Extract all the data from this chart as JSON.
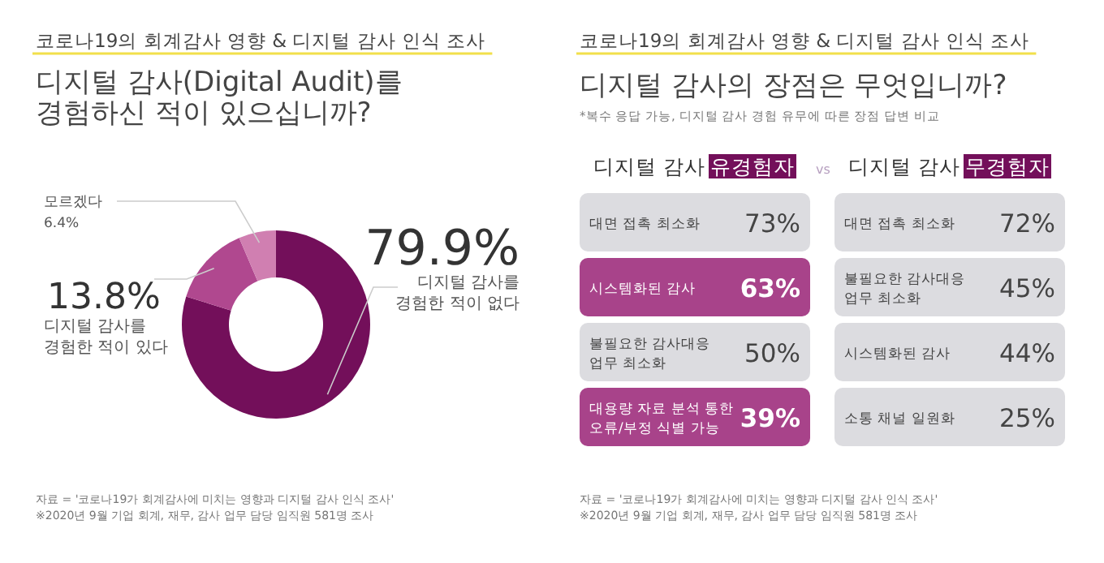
{
  "chart_data": [
    {
      "type": "donut",
      "subtitle": "코로나19의 회계감사 영향 & 디지털 감사 인식 조사",
      "title": "디지털 감사(Digital Audit)를\n경험하신 적이 있으십니까?",
      "categories": [
        "디지털 감사를\n경험한 적이 없다",
        "디지털 감사를\n경험한 적이 있다",
        "모르겠다"
      ],
      "values": [
        79.9,
        13.8,
        6.4
      ],
      "value_labels": [
        "79.9%",
        "13.8%",
        "6.4%"
      ],
      "colors": [
        "#730f5a",
        "#b0488f",
        "#d07fb1"
      ],
      "annotations": [
        "자료 = '코로나19가 회계감사에 미치는 영향과 디지털 감사 인식 조사'",
        "※2020년 9월 기업 회계, 재무, 감사 업무 담당 임직원 581명 조사"
      ]
    },
    {
      "type": "other",
      "subtitle": "코로나19의 회계감사 영향 & 디지털 감사 인식 조사",
      "title": "디지털 감사의 장점은 무엇입니까?",
      "annotations": [
        "*복수 응답 가능, 디지털 감사 경험 유무에 따른 장점 답변 비교",
        "vs",
        "자료 = '코로나19가 회계감사에 미치는 영향과 디지털 감사 인식 조사'",
        "※2020년 9월 기업 회계, 재무, 감사 업무 담당 임직원 581명 조사"
      ]
    },
    {
      "type": "other",
      "title": "디지털 감사 유경험자",
      "categories": [
        "대면 접촉 최소화",
        "시스템화된 감사",
        "불필요한 감사대응\n업무 최소화",
        "대용량 자료 분석 통한\n오류/부정 식별 가능"
      ],
      "value_labels": [
        "73%",
        "63%",
        "50%",
        "39%"
      ],
      "colors": [
        "#dcdce0",
        "#a8438a",
        "#dcdce0",
        "#a8438a"
      ]
    },
    {
      "type": "other",
      "title": "디지털 감사 무경험자",
      "categories": [
        "대면 접촉 최소화",
        "불필요한 감사대응\n업무 최소화",
        "시스템화된 감사",
        "소통 채널 일원화"
      ],
      "value_labels": [
        "72%",
        "45%",
        "44%",
        "25%"
      ],
      "colors": [
        "#dcdce0",
        "#dcdce0",
        "#dcdce0",
        "#dcdce0"
      ]
    }
  ]
}
